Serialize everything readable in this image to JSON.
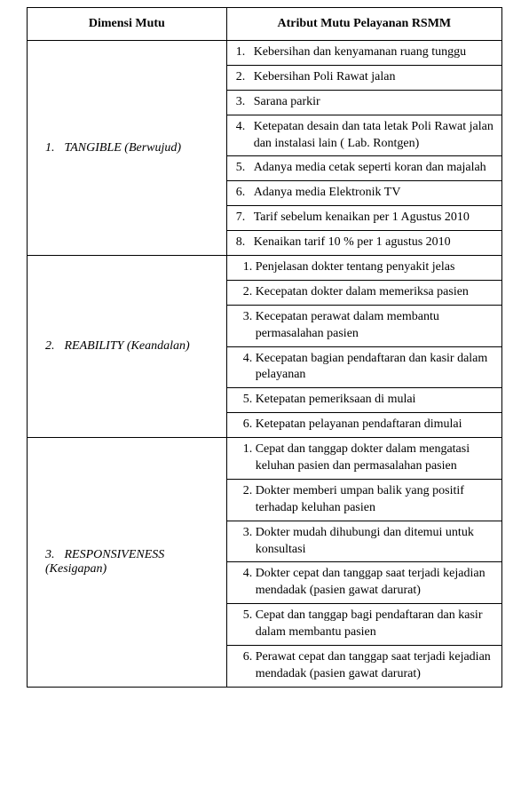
{
  "table": {
    "headers": {
      "dimension": "Dimensi Mutu",
      "attribute": "Atribut Mutu Pelayanan RSMM"
    },
    "sections": [
      {
        "num": "1.",
        "label": "TANGIBLE (Berwujud)",
        "items": [
          {
            "num": "1.",
            "text": "Kebersihan dan kenyamanan ruang tunggu"
          },
          {
            "num": "2.",
            "text": "Kebersihan Poli Rawat jalan"
          },
          {
            "num": "3.",
            "text": "Sarana parkir"
          },
          {
            "num": "4.",
            "text": "Ketepatan desain dan tata letak Poli Rawat jalan dan instalasi lain ( Lab. Rontgen)"
          },
          {
            "num": "5.",
            "text": "Adanya media cetak seperti koran dan majalah"
          },
          {
            "num": "6.",
            "text": "Adanya media Elektronik TV"
          },
          {
            "num": "7.",
            "text": "Tarif sebelum kenaikan per 1 Agustus 2010"
          },
          {
            "num": "8.",
            "text": "Kenaikan tarif 10 % per 1 agustus 2010"
          }
        ]
      },
      {
        "num": "2.",
        "label": "REABILITY (Keandalan)",
        "items": [
          {
            "num": "1.",
            "text": "Penjelasan dokter tentang penyakit jelas"
          },
          {
            "num": "2.",
            "text": "Kecepatan dokter dalam memeriksa pasien"
          },
          {
            "num": "3.",
            "text": "Kecepatan perawat dalam membantu permasalahan  pasien"
          },
          {
            "num": "4.",
            "text": "Kecepatan bagian pendaftaran dan kasir dalam pelayanan"
          },
          {
            "num": "5.",
            "text": "Ketepatan pemeriksaan di mulai"
          },
          {
            "num": "6.",
            "text": "Ketepatan pelayanan pendaftaran dimulai"
          }
        ]
      },
      {
        "num": "3.",
        "label": "RESPONSIVENESS (Kesigapan)",
        "items": [
          {
            "num": "1.",
            "text": "Cepat dan tanggap dokter dalam mengatasi keluhan pasien dan permasalahan pasien"
          },
          {
            "num": "2.",
            "text": "Dokter memberi umpan balik yang positif terhadap keluhan pasien"
          },
          {
            "num": "3.",
            "text": "Dokter mudah dihubungi  dan ditemui untuk konsultasi"
          },
          {
            "num": "4.",
            "text": "Dokter cepat dan tanggap saat terjadi kejadian mendadak (pasien gawat darurat)"
          },
          {
            "num": "5.",
            "text": "Cepat dan tanggap bagi pendaftaran dan kasir dalam membantu pasien"
          },
          {
            "num": "6.",
            "text": "Perawat cepat dan tanggap saat terjadi kejadian mendadak (pasien gawat darurat)"
          }
        ]
      }
    ]
  }
}
